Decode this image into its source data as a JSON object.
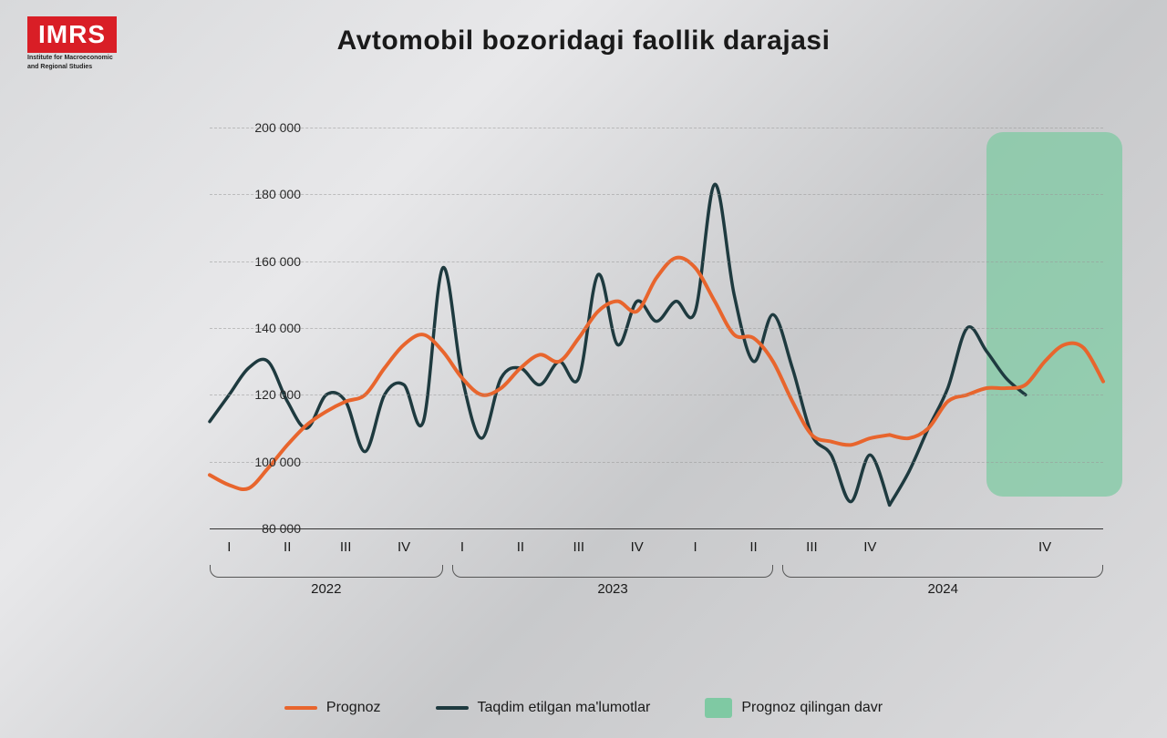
{
  "logo": {
    "text": "IMRS",
    "subtitle1": "Institute for Macroeconomic",
    "subtitle2": "and Regional Studies"
  },
  "title": "Avtomobil bozoridagi faollik darajasi",
  "chart": {
    "type": "line",
    "ylim": [
      80000,
      200000
    ],
    "ytick_step": 20000,
    "ytick_labels": [
      "80 000",
      "100 000",
      "120 000",
      "140 000",
      "160 000",
      "180 000",
      "200 000"
    ],
    "grid_color": "#9a9a9a",
    "background": "transparent",
    "years": [
      "2022",
      "2023",
      "2024"
    ],
    "quarters_per_year": [
      "I",
      "II",
      "III",
      "IV"
    ],
    "n_points": 36,
    "series": {
      "prognoz": {
        "label": "Prognoz",
        "color": "#e8652d",
        "width": 4,
        "values": [
          96000,
          93000,
          92000,
          98000,
          105000,
          111000,
          115000,
          118000,
          120000,
          128000,
          135000,
          138000,
          133000,
          125000,
          120000,
          122000,
          128000,
          132000,
          130000,
          137000,
          145000,
          148000,
          145000,
          155000,
          161000,
          158000,
          148000,
          138000,
          137000,
          130000,
          118000,
          108000,
          106000,
          105000,
          107000,
          108000
        ]
      },
      "actual": {
        "label": "Taqdim etilgan ma'lumotlar",
        "color": "#1e3a3f",
        "width": 3.5,
        "values": [
          112000,
          120000,
          128000,
          130000,
          118000,
          110000,
          120000,
          118000,
          103000,
          120000,
          123000,
          112000,
          158000,
          125000,
          107000,
          125000,
          128000,
          123000,
          130000,
          125000,
          156000,
          135000,
          148000,
          142000,
          148000,
          145000,
          183000,
          150000,
          130000,
          144000,
          128000,
          108000,
          102000,
          88000,
          102000,
          87000
        ]
      },
      "prognoz_ext": {
        "color": "#e8652d",
        "width": 4,
        "start_index": 35,
        "values": [
          108000,
          107000,
          110000,
          118000,
          120000,
          122000,
          122000,
          123000,
          130000,
          135000,
          134000,
          124000
        ]
      },
      "actual_ext": {
        "color": "#1e3a3f",
        "width": 3.5,
        "start_index": 35,
        "values": [
          87000,
          97000,
          110000,
          122000,
          140000,
          133000,
          125000,
          120000
        ]
      }
    },
    "forecast_band": {
      "label": "Prognoz qilingan davr",
      "color": "#7fc9a3",
      "start_index": 40,
      "end_index": 47
    }
  },
  "legend": {
    "items": [
      {
        "type": "line",
        "key": "prognoz"
      },
      {
        "type": "line",
        "key": "actual"
      },
      {
        "type": "box",
        "key": "band"
      }
    ]
  }
}
